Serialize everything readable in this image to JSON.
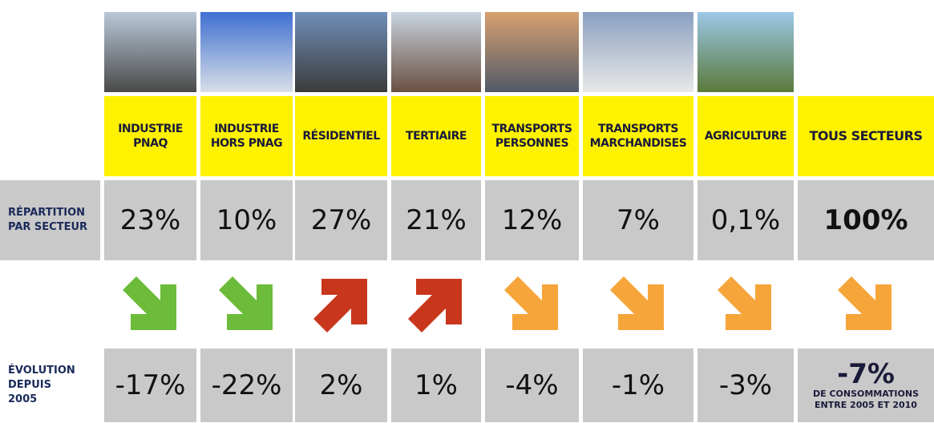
{
  "row_labels": {
    "share": "RÉPARTITION\nPAR SECTEUR",
    "evolution": "ÉVOLUTION\nDEPUIS\n2005"
  },
  "columns": [
    {
      "header": "INDUSTRIE\nPNAQ",
      "share": "23%",
      "evolution": "-17%"
    },
    {
      "header": "INDUSTRIE\nHORS PNAG",
      "share": "10%",
      "evolution": "-22%"
    },
    {
      "header": "RÉSIDENTIEL",
      "share": "27%",
      "evolution": "2%"
    },
    {
      "header": "TERTIAIRE",
      "share": "21%",
      "evolution": "1%"
    },
    {
      "header": "TRANSPORTS\nPERSONNES",
      "share": "12%",
      "evolution": "-4%"
    },
    {
      "header": "TRANSPORTS\nMARCHANDISES",
      "share": "7%",
      "evolution": "-1%"
    },
    {
      "header": "AGRICULTURE",
      "share": "0,1%",
      "evolution": "-3%"
    }
  ],
  "total": {
    "header": "TOUS SECTEURS",
    "share": "100%",
    "evolution": "-7%",
    "note": "DE CONSOMMATIONS\nENTRE 2005 ET 2010"
  }
}
